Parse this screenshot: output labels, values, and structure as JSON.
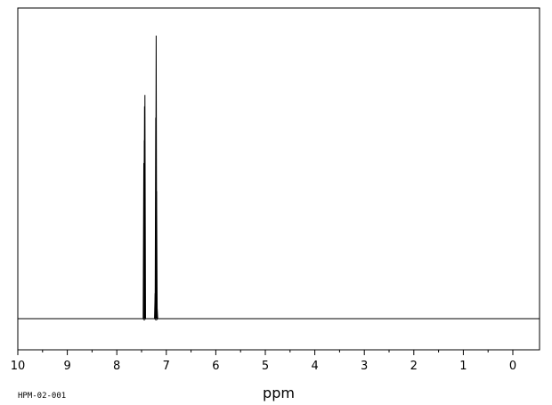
{
  "chart_data": {
    "type": "line",
    "title": "",
    "xlabel": "ppm",
    "ylabel": "",
    "code": "HPM-02-001",
    "xlim": [
      10,
      0
    ],
    "x_reversed": true,
    "xticks": [
      10,
      9,
      8,
      7,
      6,
      5,
      4,
      3,
      2,
      1,
      0
    ],
    "grid": false,
    "series": [
      {
        "peaks": [
          {
            "ppm": 7.455,
            "height": 0.55
          },
          {
            "ppm": 7.445,
            "height": 0.63
          },
          {
            "ppm": 7.44,
            "height": 0.75
          },
          {
            "ppm": 7.432,
            "height": 0.79
          },
          {
            "ppm": 7.226,
            "height": 0.09
          },
          {
            "ppm": 7.214,
            "height": 0.71
          },
          {
            "ppm": 7.205,
            "height": 1.0
          },
          {
            "ppm": 7.196,
            "height": 0.45
          },
          {
            "ppm": 7.186,
            "height": 0.04
          }
        ]
      }
    ]
  }
}
